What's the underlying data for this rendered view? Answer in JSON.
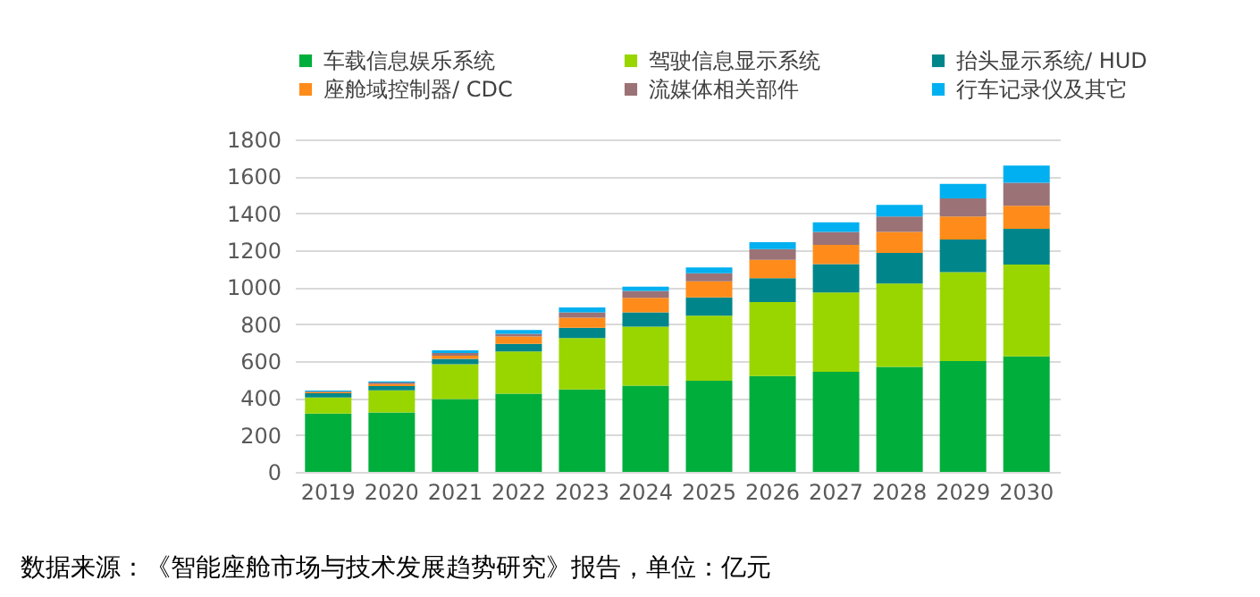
{
  "chart_data": {
    "type": "bar",
    "stacked": true,
    "categories": [
      "2019",
      "2020",
      "2021",
      "2022",
      "2023",
      "2024",
      "2025",
      "2026",
      "2027",
      "2028",
      "2029",
      "2030"
    ],
    "series": [
      {
        "name": "车载信息娱乐系统",
        "color": "#00ae3c",
        "values": [
          316,
          322,
          394,
          423,
          446,
          467,
          493,
          519,
          542,
          568,
          600,
          626
        ]
      },
      {
        "name": "驾驶信息显示系统",
        "color": "#99d600",
        "values": [
          87,
          119,
          189,
          229,
          279,
          319,
          353,
          400,
          429,
          452,
          481,
          496
        ]
      },
      {
        "name": "抬头显示系统/ HUD",
        "color": "#00868a",
        "values": [
          23,
          23,
          29,
          41,
          55,
          78,
          99,
          130,
          154,
          166,
          177,
          194
        ]
      },
      {
        "name": "座舱域控制器/ CDC",
        "color": "#ff8c1a",
        "values": [
          6,
          11,
          17,
          40,
          55,
          78,
          87,
          99,
          104,
          113,
          125,
          125
        ]
      },
      {
        "name": "流媒体相关部件",
        "color": "#9b7276",
        "values": [
          3,
          9,
          14,
          15,
          29,
          38,
          43,
          58,
          70,
          84,
          98,
          124
        ]
      },
      {
        "name": "行车记录仪及其它",
        "color": "#00b0f0",
        "values": [
          5,
          6,
          15,
          20,
          26,
          23,
          32,
          37,
          52,
          63,
          78,
          93
        ]
      }
    ],
    "ylim": [
      0,
      1800
    ],
    "yticks": [
      0,
      200,
      400,
      600,
      800,
      1000,
      1200,
      1400,
      1600,
      1800
    ],
    "grid": "y",
    "legend": "top",
    "annotations": [
      "数据来源：《智能座舱市场与技术发展趋势研究》报告，单位：亿元"
    ]
  }
}
